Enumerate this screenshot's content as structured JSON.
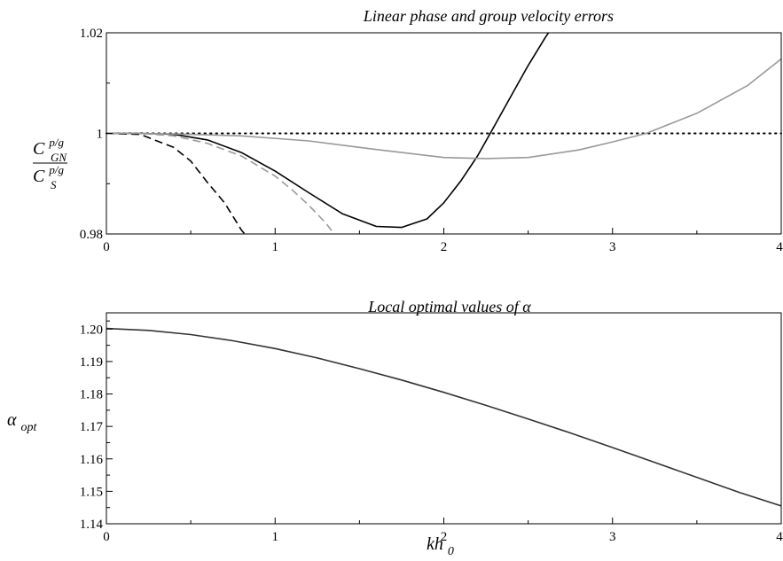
{
  "chart_data": [
    {
      "type": "line",
      "title": "Linear phase and group velocity errors",
      "ylabel": {
        "numerator_base": "C",
        "numerator_sup": "p/g",
        "numerator_sub": "GN",
        "denominator_base": "C",
        "denominator_sup": "p/g",
        "denominator_sub": "S"
      },
      "xlim": [
        0,
        4
      ],
      "ylim": [
        0.98,
        1.02
      ],
      "x_ticks": [
        "0",
        "1",
        "2",
        "3",
        "4"
      ],
      "y_ticks": [
        "0.98",
        "1",
        "1.02"
      ],
      "reference_line": {
        "y": 1.0,
        "style": "dotted",
        "color": "#000000"
      },
      "series": [
        {
          "style": "solid",
          "color": "#000000",
          "x": [
            0,
            0.2,
            0.4,
            0.6,
            0.8,
            1.0,
            1.2,
            1.4,
            1.6,
            1.75,
            1.9,
            2.0,
            2.1,
            2.2,
            2.3,
            2.4,
            2.5,
            2.6,
            2.63
          ],
          "y": [
            1.0,
            1.0,
            0.9998,
            0.9987,
            0.9962,
            0.9925,
            0.9882,
            0.984,
            0.9815,
            0.9813,
            0.983,
            0.9862,
            0.9905,
            0.9955,
            1.0015,
            1.0075,
            1.0135,
            1.019,
            1.0205
          ]
        },
        {
          "style": "solid",
          "color": "#999999",
          "x": [
            0,
            0.4,
            0.8,
            1.2,
            1.6,
            2.0,
            2.25,
            2.5,
            2.8,
            3.0,
            3.2,
            3.5,
            3.8,
            4.0
          ],
          "y": [
            1.0,
            0.9999,
            0.9995,
            0.9985,
            0.9968,
            0.9952,
            0.995,
            0.9952,
            0.9967,
            0.9983,
            1.0,
            1.004,
            1.0095,
            1.0148
          ]
        },
        {
          "style": "dashed",
          "color": "#000000",
          "x": [
            0,
            0.2,
            0.4,
            0.5,
            0.6,
            0.7,
            0.75,
            0.8,
            0.82
          ],
          "y": [
            1.0,
            0.9998,
            0.9972,
            0.9945,
            0.9902,
            0.9862,
            0.9835,
            0.9808,
            0.98
          ]
        },
        {
          "style": "dashed",
          "color": "#999999",
          "x": [
            0,
            0.2,
            0.4,
            0.6,
            0.8,
            1.0,
            1.1,
            1.2,
            1.3,
            1.35
          ],
          "y": [
            1.0,
            1.0,
            0.9995,
            0.998,
            0.9955,
            0.9915,
            0.9888,
            0.9857,
            0.9822,
            0.98
          ]
        }
      ]
    },
    {
      "type": "line",
      "title": "Local optimal values of α",
      "ylabel": {
        "base": "α",
        "sub": "opt"
      },
      "xlabel": {
        "base": "kh",
        "sub": "0"
      },
      "xlim": [
        0,
        4
      ],
      "ylim": [
        1.14,
        1.205
      ],
      "x_ticks": [
        "0",
        "1",
        "2",
        "3",
        "4"
      ],
      "y_ticks": [
        "1.14",
        "1.15",
        "1.16",
        "1.17",
        "1.18",
        "1.19",
        "1.20"
      ],
      "series": [
        {
          "style": "solid",
          "color": "#333333",
          "x": [
            0,
            0.25,
            0.5,
            0.75,
            1.0,
            1.25,
            1.5,
            1.75,
            2.0,
            2.25,
            2.5,
            2.75,
            3.0,
            3.25,
            3.5,
            3.75,
            4.0
          ],
          "y": [
            1.2002,
            1.1996,
            1.1983,
            1.1964,
            1.194,
            1.1911,
            1.1878,
            1.1843,
            1.1805,
            1.1765,
            1.1723,
            1.168,
            1.1635,
            1.1589,
            1.1543,
            1.1497,
            1.1455
          ]
        }
      ]
    }
  ]
}
